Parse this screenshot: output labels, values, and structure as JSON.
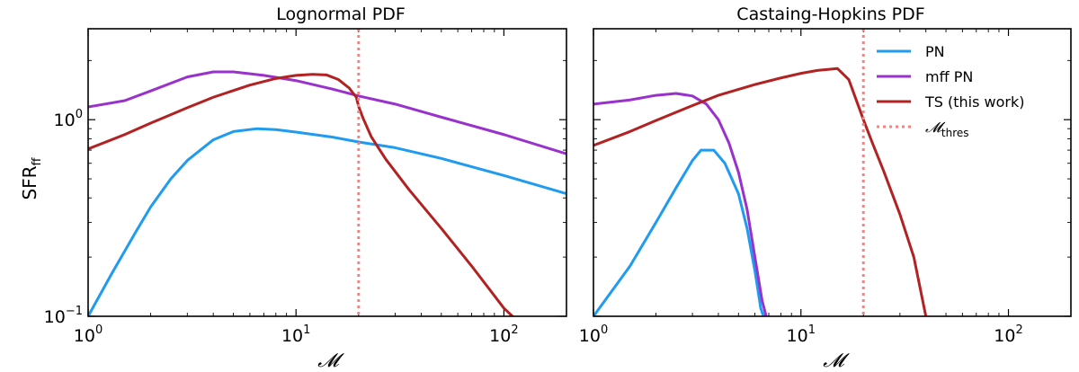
{
  "chart_data": [
    {
      "type": "line",
      "title": "Lognormal PDF",
      "xlabel": "𝓜",
      "ylabel_main": "SFR",
      "ylabel_sub": "ff",
      "xscale": "log",
      "yscale": "log",
      "xlim": [
        1,
        200
      ],
      "ylim": [
        0.1,
        2.9
      ],
      "xticks": [
        {
          "base": "10",
          "exp": "0"
        },
        {
          "base": "10",
          "exp": "1"
        },
        {
          "base": "10",
          "exp": "2"
        }
      ],
      "yticks": [
        {
          "base": "10",
          "exp": "−1",
          "value": 0.1
        },
        {
          "base": "10",
          "exp": "0",
          "value": 1
        }
      ],
      "vline": {
        "x": 20,
        "color": "#ff7f7f"
      },
      "series": [
        {
          "name": "PN",
          "color": "#1f9bf0",
          "points": [
            [
              1,
              0.1
            ],
            [
              1.3,
              0.165
            ],
            [
              1.7,
              0.27
            ],
            [
              2,
              0.36
            ],
            [
              2.5,
              0.5
            ],
            [
              3,
              0.62
            ],
            [
              4,
              0.79
            ],
            [
              5,
              0.87
            ],
            [
              6.5,
              0.9
            ],
            [
              8,
              0.89
            ],
            [
              10,
              0.865
            ],
            [
              15,
              0.815
            ],
            [
              20,
              0.77
            ],
            [
              30,
              0.72
            ],
            [
              50,
              0.635
            ],
            [
              100,
              0.52
            ],
            [
              200,
              0.42
            ]
          ]
        },
        {
          "name": "mff PN",
          "color": "#9932cc",
          "points": [
            [
              1,
              1.16
            ],
            [
              1.5,
              1.25
            ],
            [
              2,
              1.4
            ],
            [
              3,
              1.65
            ],
            [
              4,
              1.75
            ],
            [
              5,
              1.75
            ],
            [
              7,
              1.68
            ],
            [
              10,
              1.58
            ],
            [
              15,
              1.43
            ],
            [
              20,
              1.32
            ],
            [
              30,
              1.2
            ],
            [
              50,
              1.03
            ],
            [
              100,
              0.84
            ],
            [
              200,
              0.67
            ]
          ]
        },
        {
          "name": "TS (this work)",
          "color": "#b22222",
          "points": [
            [
              1,
              0.71
            ],
            [
              1.5,
              0.84
            ],
            [
              2,
              0.96
            ],
            [
              3,
              1.15
            ],
            [
              4,
              1.3
            ],
            [
              6,
              1.5
            ],
            [
              8,
              1.62
            ],
            [
              10,
              1.68
            ],
            [
              12,
              1.7
            ],
            [
              14,
              1.69
            ],
            [
              16,
              1.6
            ],
            [
              18,
              1.45
            ],
            [
              19.5,
              1.3
            ],
            [
              20,
              1.17
            ],
            [
              21,
              1.02
            ],
            [
              23,
              0.82
            ],
            [
              27,
              0.63
            ],
            [
              35,
              0.44
            ],
            [
              50,
              0.28
            ],
            [
              70,
              0.18
            ],
            [
              100,
              0.11
            ],
            [
              110,
              0.1
            ]
          ]
        }
      ]
    },
    {
      "type": "line",
      "title": "Castaing-Hopkins PDF",
      "xlabel": "𝓜",
      "xscale": "log",
      "yscale": "log",
      "xlim": [
        1,
        200
      ],
      "ylim": [
        0.1,
        2.9
      ],
      "xticks": [
        {
          "base": "10",
          "exp": "0"
        },
        {
          "base": "10",
          "exp": "1"
        },
        {
          "base": "10",
          "exp": "2"
        }
      ],
      "vline": {
        "x": 20,
        "color": "#ff7f7f"
      },
      "legend": {
        "position": "top-right",
        "entries": [
          {
            "label": "PN",
            "color": "#1f9bf0",
            "style": "solid"
          },
          {
            "label": "mff PN",
            "color": "#9932cc",
            "style": "solid"
          },
          {
            "label": "TS (this work)",
            "color": "#b22222",
            "style": "solid"
          },
          {
            "label_main": "𝓜",
            "label_sub": "thres",
            "color": "#ff7f7f",
            "style": "dotted"
          }
        ]
      },
      "series": [
        {
          "name": "PN",
          "color": "#1f9bf0",
          "points": [
            [
              1,
              0.1
            ],
            [
              1.5,
              0.18
            ],
            [
              2,
              0.3
            ],
            [
              2.5,
              0.45
            ],
            [
              3,
              0.62
            ],
            [
              3.3,
              0.7
            ],
            [
              3.8,
              0.7
            ],
            [
              4.3,
              0.6
            ],
            [
              5,
              0.42
            ],
            [
              5.5,
              0.28
            ],
            [
              6,
              0.17
            ],
            [
              6.4,
              0.11
            ],
            [
              6.6,
              0.1
            ]
          ]
        },
        {
          "name": "mff PN",
          "color": "#9932cc",
          "points": [
            [
              1,
              1.2
            ],
            [
              1.5,
              1.26
            ],
            [
              2,
              1.33
            ],
            [
              2.5,
              1.36
            ],
            [
              3,
              1.32
            ],
            [
              3.5,
              1.2
            ],
            [
              4,
              1.0
            ],
            [
              4.5,
              0.76
            ],
            [
              5,
              0.54
            ],
            [
              5.5,
              0.35
            ],
            [
              6,
              0.2
            ],
            [
              6.5,
              0.12
            ],
            [
              6.8,
              0.1
            ]
          ]
        },
        {
          "name": "TS (this work)",
          "color": "#b22222",
          "points": [
            [
              1,
              0.74
            ],
            [
              1.5,
              0.87
            ],
            [
              2,
              0.99
            ],
            [
              3,
              1.18
            ],
            [
              4,
              1.33
            ],
            [
              6,
              1.51
            ],
            [
              8,
              1.63
            ],
            [
              10,
              1.72
            ],
            [
              12,
              1.78
            ],
            [
              15,
              1.82
            ],
            [
              17,
              1.6
            ],
            [
              20,
              1.0
            ],
            [
              22,
              0.77
            ],
            [
              25,
              0.55
            ],
            [
              30,
              0.33
            ],
            [
              35,
              0.2
            ],
            [
              40,
              0.1
            ]
          ]
        }
      ]
    }
  ]
}
